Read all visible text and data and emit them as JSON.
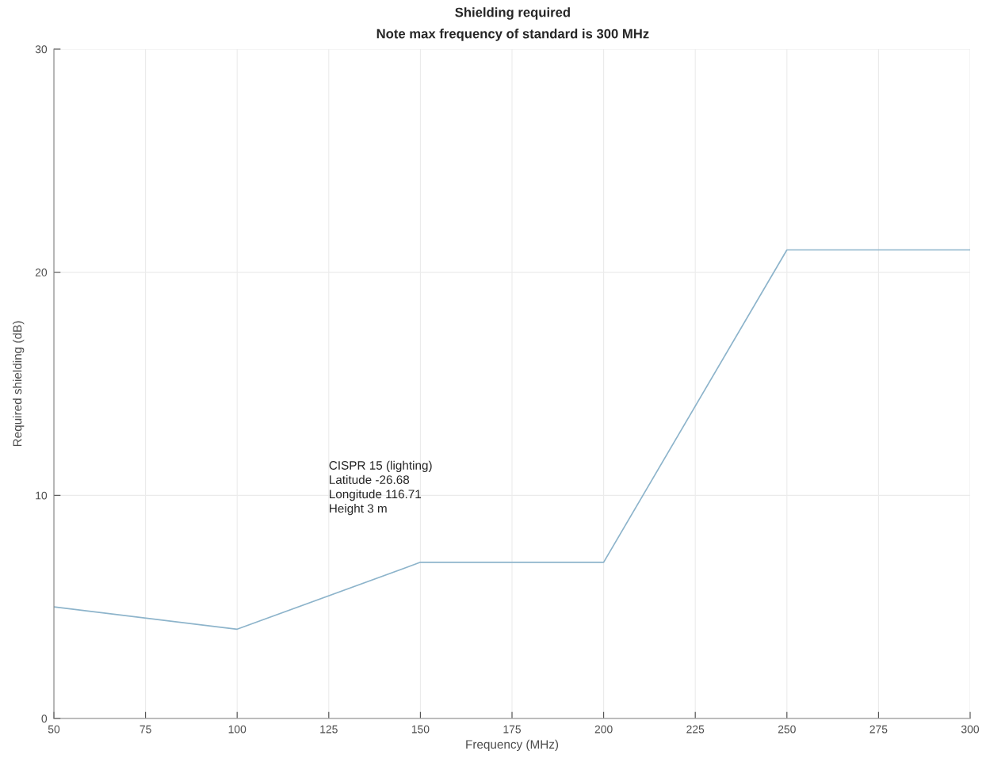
{
  "chart_data": {
    "type": "line",
    "title": "Shielding required",
    "subtitle": "Note max frequency of standard is 300 MHz",
    "xlabel": "Frequency (MHz)",
    "ylabel": "Required shielding (dB)",
    "x": [
      50,
      100,
      150,
      200,
      250,
      300
    ],
    "series": [
      {
        "color": "#8db4cb",
        "values": [
          5,
          4,
          7,
          7,
          21,
          21
        ]
      }
    ],
    "xlim": [
      50,
      300
    ],
    "xticks": [
      50,
      75,
      100,
      125,
      150,
      175,
      200,
      225,
      250,
      275,
      300
    ],
    "ylim": [
      0,
      30
    ],
    "yticks": [
      0,
      10,
      20,
      30
    ],
    "grid": true,
    "marker": "none",
    "line_style": "solid",
    "annotations": [
      "CISPR 15 (lighting)\nLatitude -26.68\nLongitude 116.71\nHeight 3 m"
    ]
  }
}
